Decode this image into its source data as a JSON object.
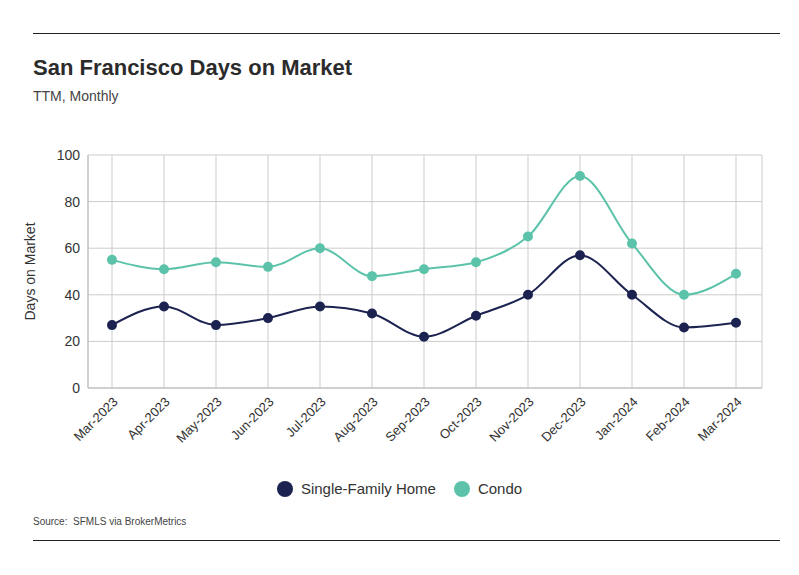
{
  "chart_data": {
    "type": "line",
    "title": "San Francisco Days on Market",
    "subtitle": "TTM, Monthly",
    "y_label": "Days on Market",
    "source": "Source:  SFMLS via BrokerMetrics",
    "categories": [
      "Mar-2023",
      "Apr-2023",
      "May-2023",
      "Jun-2023",
      "Jul-2023",
      "Aug-2023",
      "Sep-2023",
      "Oct-2023",
      "Nov-2023",
      "Dec-2023",
      "Jan-2024",
      "Feb-2024",
      "Mar-2024"
    ],
    "series": [
      {
        "name": "Single-Family Home",
        "color": "#1c2350",
        "values": [
          27,
          35,
          27,
          30,
          35,
          32,
          22,
          31,
          40,
          57,
          40,
          26,
          28
        ]
      },
      {
        "name": "Condo",
        "color": "#5cc3aa",
        "values": [
          55,
          51,
          54,
          52,
          60,
          48,
          51,
          54,
          65,
          91,
          62,
          40,
          49
        ]
      }
    ],
    "ylim": [
      0,
      100
    ],
    "yticks": [
      0,
      20,
      40,
      60,
      80,
      100
    ],
    "grid": true,
    "legend": "bottom",
    "marker": "circle"
  }
}
